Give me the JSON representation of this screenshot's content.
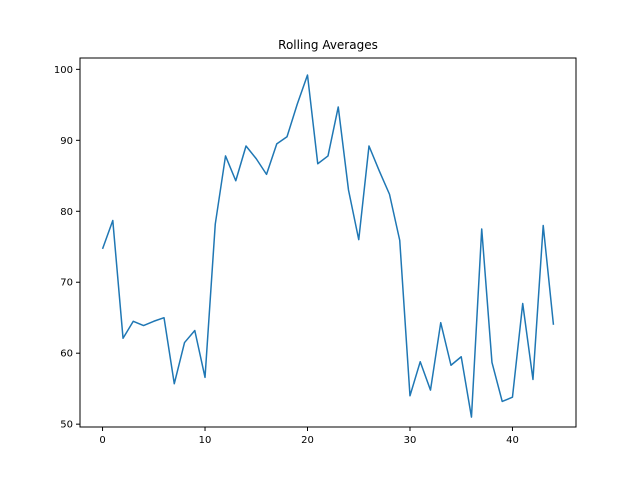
{
  "chart_data": {
    "type": "line",
    "title": "Rolling Averages",
    "xlabel": "",
    "ylabel": "",
    "xlim": [
      -2.2,
      46.2
    ],
    "ylim": [
      49.6,
      101.6
    ],
    "xticks": [
      0,
      10,
      20,
      30,
      40
    ],
    "yticks": [
      50,
      60,
      70,
      80,
      90,
      100
    ],
    "grid": false,
    "line_color": "#1f77b4",
    "series": [
      {
        "x": [
          0,
          1,
          2,
          3,
          4,
          5,
          6,
          7,
          8,
          9,
          10,
          11,
          12,
          13,
          14,
          15,
          16,
          17,
          18,
          19,
          20,
          21,
          22,
          23,
          24,
          25,
          26,
          27,
          28,
          29,
          30,
          31,
          32,
          33,
          34,
          35,
          36,
          37,
          38,
          39,
          40,
          41,
          42,
          43,
          44
        ],
        "values": [
          74.7,
          78.7,
          62.1,
          64.5,
          63.9,
          64.5,
          65.0,
          55.7,
          61.5,
          63.2,
          56.6,
          78.2,
          87.8,
          84.3,
          89.2,
          87.4,
          85.2,
          89.5,
          90.5,
          95.1,
          99.2,
          86.7,
          87.8,
          94.7,
          83.0,
          76.0,
          89.2,
          85.7,
          82.4,
          75.9,
          54.0,
          58.8,
          54.8,
          64.3,
          58.3,
          59.5,
          51.0,
          77.5,
          58.7,
          53.2,
          53.8,
          67.0,
          56.3,
          78.0,
          64.0
        ]
      }
    ]
  }
}
